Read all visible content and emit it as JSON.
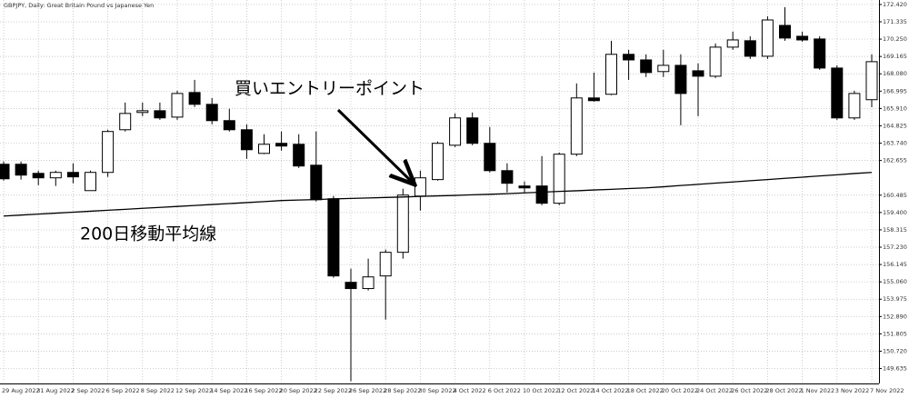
{
  "chart_data": {
    "type": "candlestick",
    "title": "GBPJPY, Daily:  Great Britain Pound vs Japanese Yen",
    "categories": [
      "29 Aug 2022",
      null,
      "31 Aug 2022",
      null,
      "2 Sep 2022",
      null,
      "6 Sep 2022",
      null,
      "8 Sep 2022",
      null,
      "12 Sep 2022",
      null,
      "14 Sep 2022",
      null,
      "16 Sep 2022",
      null,
      "20 Sep 2022",
      null,
      "22 Sep 2022",
      null,
      "26 Sep 2022",
      null,
      "28 Sep 2022",
      null,
      "30 Sep 2022",
      null,
      "4 Oct 2022",
      null,
      "6 Oct 2022",
      null,
      "10 Oct 2022",
      null,
      "12 Oct 2022",
      null,
      "14 Oct 2022",
      null,
      "18 Oct 2022",
      null,
      "20 Oct 2022",
      null,
      "24 Oct 2022",
      null,
      "26 Oct 2022",
      null,
      "28 Oct 2022",
      null,
      "1 Nov 2022",
      null,
      "3 Nov 2022",
      null,
      "7 Nov 2022"
    ],
    "open": [
      162.42,
      162.42,
      161.85,
      161.57,
      161.91,
      160.77,
      161.91,
      164.58,
      165.66,
      165.77,
      165.37,
      166.91,
      166.17,
      165.15,
      164.58,
      163.1,
      163.73,
      163.67,
      162.36,
      160.26,
      155.03,
      154.64,
      155.43,
      156.91,
      160.43,
      161.46,
      163.61,
      165.32,
      163.73,
      162.02,
      161.06,
      161.06,
      159.98,
      163.05,
      166.57,
      166.8,
      169.3,
      168.95,
      168.22,
      168.61,
      168.27,
      167.93,
      169.75,
      170.15,
      169.18,
      171.11,
      170.43,
      170.26,
      168.44,
      165.32,
      166.46
    ],
    "high": [
      162.59,
      162.59,
      162.02,
      162.02,
      162.48,
      162.02,
      164.58,
      166.28,
      166.28,
      166.28,
      167.02,
      167.7,
      166.57,
      165.89,
      164.92,
      164.3,
      164.47,
      164.3,
      164.47,
      160.43,
      155.89,
      156.51,
      157.08,
      160.89,
      162.02,
      163.84,
      165.6,
      165.66,
      164.75,
      162.48,
      161.34,
      162.93,
      163.16,
      167.48,
      168.16,
      170.15,
      169.58,
      169.3,
      169.58,
      169.3,
      168.73,
      169.98,
      170.72,
      170.43,
      171.68,
      172.25,
      170.72,
      170.43,
      168.61,
      167.02,
      169.3
    ],
    "low": [
      161.4,
      161.46,
      161.11,
      161.06,
      161.23,
      160.77,
      161.63,
      164.47,
      165.43,
      165.2,
      165.2,
      166.0,
      164.92,
      164.47,
      162.76,
      163.05,
      163.27,
      162.19,
      160.09,
      155.32,
      148.84,
      154.52,
      152.7,
      156.51,
      159.52,
      161.4,
      163.5,
      163.61,
      161.91,
      160.66,
      160.66,
      159.86,
      159.86,
      162.93,
      166.34,
      166.74,
      167.7,
      167.88,
      167.88,
      164.86,
      165.43,
      167.82,
      169.58,
      169.01,
      169.01,
      170.15,
      170.09,
      168.33,
      165.2,
      165.2,
      165.99
    ],
    "close": [
      161.51,
      161.74,
      161.57,
      161.91,
      161.63,
      161.91,
      164.47,
      165.6,
      165.77,
      165.32,
      166.85,
      166.17,
      165.15,
      164.58,
      163.33,
      163.67,
      163.56,
      162.31,
      160.2,
      155.43,
      154.64,
      155.37,
      156.91,
      160.49,
      161.57,
      163.73,
      165.32,
      163.73,
      162.02,
      161.23,
      160.94,
      159.98,
      163.05,
      166.57,
      166.4,
      169.3,
      168.95,
      168.16,
      168.61,
      166.85,
      167.93,
      169.75,
      170.2,
      169.18,
      171.45,
      170.32,
      170.2,
      168.44,
      165.32,
      166.85,
      168.84
    ],
    "up_color": "#ffffff",
    "down_color": "#000000",
    "ma": {
      "color": "#000000",
      "values": [
        159.18,
        159.24,
        159.3,
        159.36,
        159.42,
        159.48,
        159.54,
        159.6,
        159.66,
        159.72,
        159.78,
        159.84,
        159.9,
        159.96,
        160.02,
        160.08,
        160.15,
        160.18,
        160.21,
        160.25,
        160.28,
        160.31,
        160.34,
        160.37,
        160.41,
        160.44,
        160.47,
        160.51,
        160.54,
        160.58,
        160.63,
        160.67,
        160.72,
        160.76,
        160.81,
        160.85,
        160.9,
        160.94,
        161.01,
        161.09,
        161.16,
        161.24,
        161.31,
        161.39,
        161.46,
        161.54,
        161.61,
        161.69,
        161.76,
        161.84,
        161.91
      ]
    },
    "ylim": [
      148.7,
      172.7
    ],
    "yticks": [
      {
        "value": 172.42,
        "label": "172.420"
      },
      171.335,
      {
        "value": 170.25,
        "label": "170.250"
      },
      169.165,
      {
        "value": 168.08,
        "label": "168.080"
      },
      166.995,
      {
        "value": 165.91,
        "label": "165.910"
      },
      164.825,
      {
        "value": 163.74,
        "label": "163.740"
      },
      162.655,
      160.485,
      {
        "value": 159.4,
        "label": "159.400"
      },
      158.315,
      {
        "value": 157.23,
        "label": "157.230"
      },
      156.145,
      {
        "value": 155.06,
        "label": "155.060"
      },
      153.975,
      {
        "value": 152.89,
        "label": "152.890"
      },
      151.805,
      {
        "value": 150.72,
        "label": "150.720"
      },
      149.635
    ],
    "grid": true,
    "annotations": [
      {
        "text": "買いエントリーポイント"
      },
      {
        "text": "200日移動平均線"
      }
    ]
  }
}
